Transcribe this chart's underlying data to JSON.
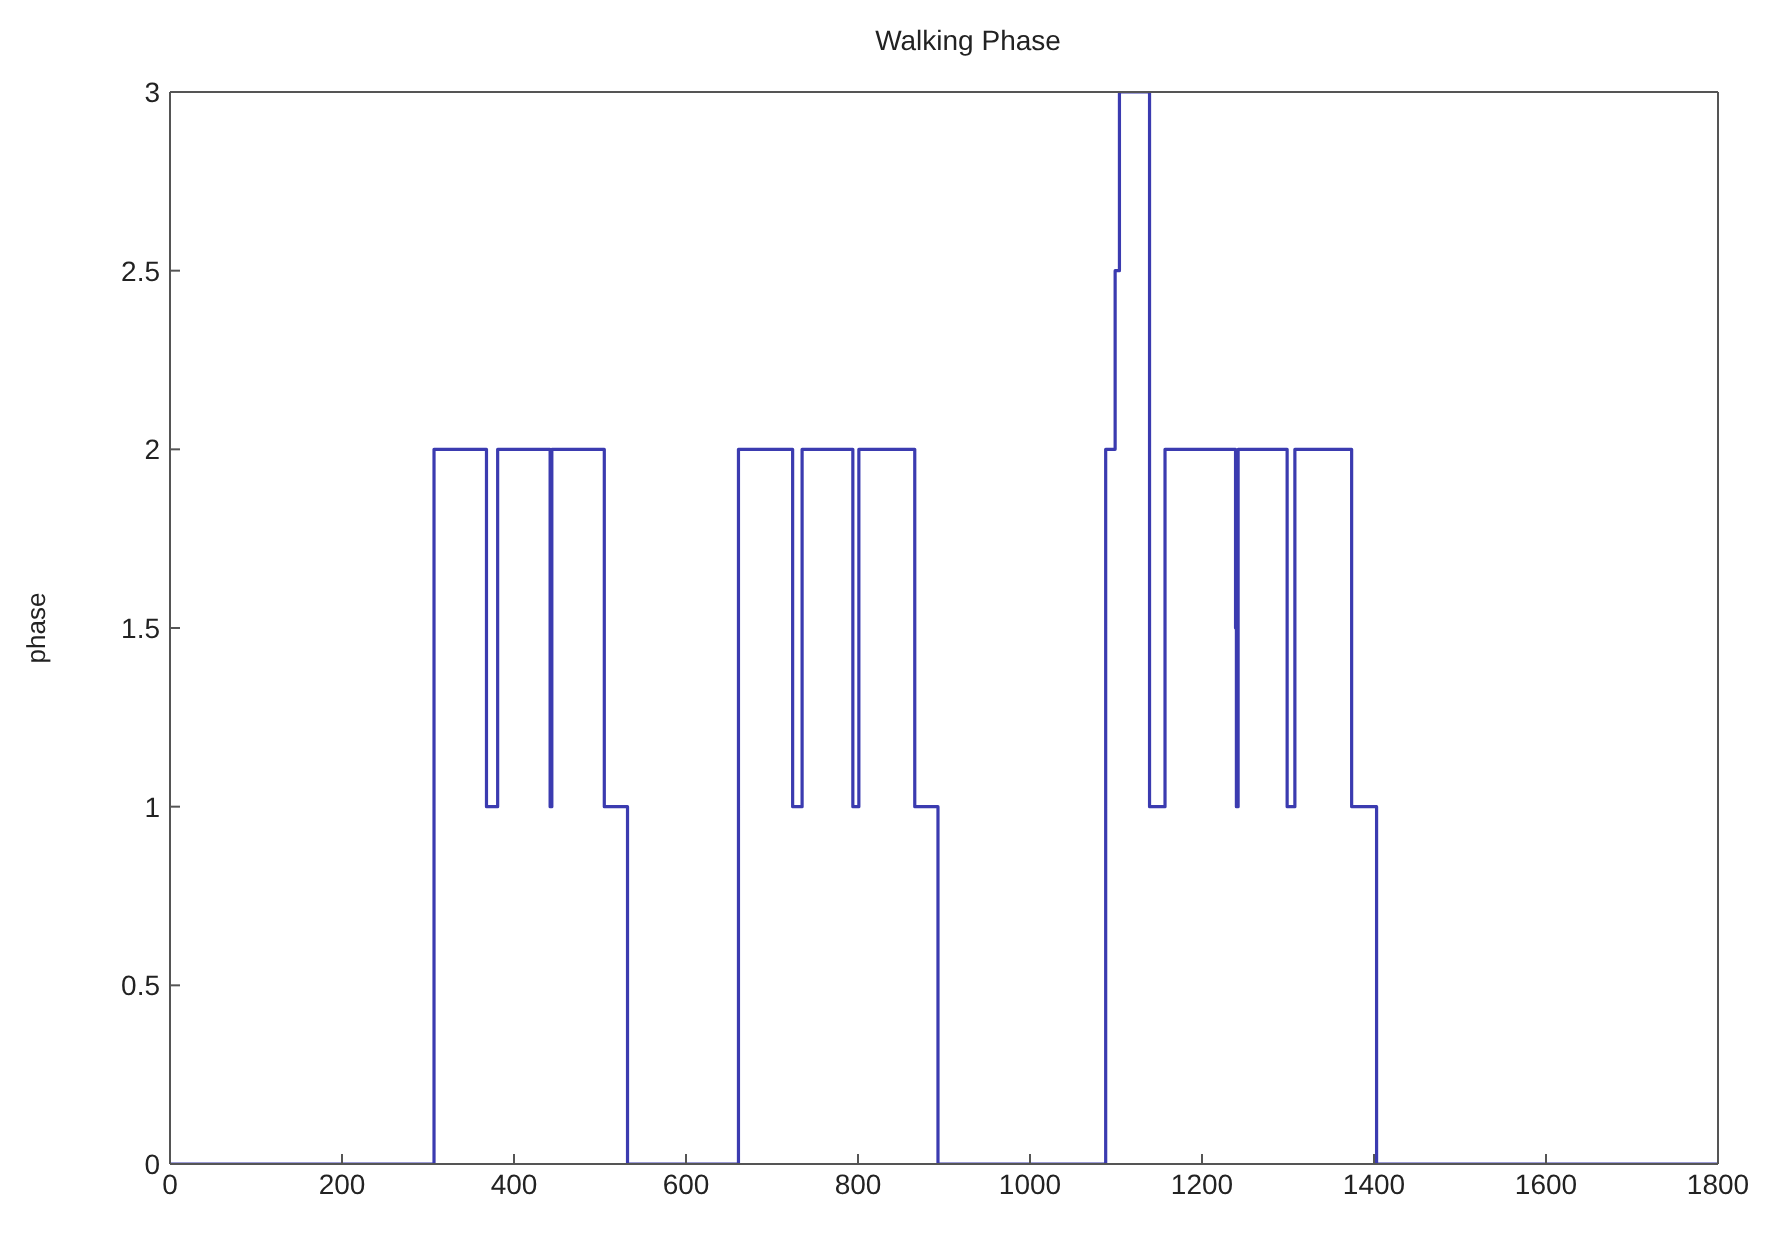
{
  "chart_data": {
    "type": "step",
    "title": "Walking Phase",
    "ylabel": "phase",
    "x": [
      0,
      307,
      368,
      381,
      442,
      444,
      505,
      532,
      661,
      724,
      735,
      794,
      801,
      866,
      893,
      1088,
      1099,
      1104,
      1139,
      1157,
      1239,
      1240,
      1242,
      1299,
      1308,
      1374,
      1403,
      1800
    ],
    "series": [
      {
        "color": "#3b3bb0",
        "values": [
          0,
          2,
          1,
          2,
          1,
          2,
          1,
          0,
          2,
          1,
          2,
          1,
          2,
          1,
          0,
          2,
          2.5,
          3,
          1,
          2,
          1.5,
          1,
          2,
          1,
          2,
          1,
          0,
          0
        ]
      }
    ],
    "xlim": [
      0,
      1800
    ],
    "xticks": [
      0,
      200,
      400,
      600,
      800,
      1000,
      1200,
      1400,
      1600,
      1800
    ],
    "ylim": [
      0,
      3
    ],
    "yticks": [
      0,
      0.5,
      1,
      1.5,
      2,
      2.5,
      3
    ],
    "grid": false,
    "legend": false,
    "marker": "none",
    "line_style": "solid"
  }
}
